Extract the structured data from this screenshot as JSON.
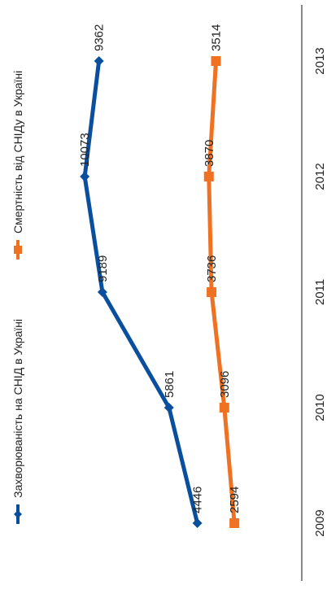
{
  "chart_data": {
    "type": "line",
    "orientation": "rotated-90-clockwise",
    "categories": [
      "2009",
      "2010",
      "2011",
      "2012",
      "2013"
    ],
    "ylim": [
      0,
      12000
    ],
    "grid": false,
    "legend_position": "left",
    "series": [
      {
        "name": "Захворюваність на СНІД в Україні",
        "marker": "diamond",
        "color": "#0a4f9e",
        "values": [
          4446,
          5861,
          9189,
          10073,
          9362
        ],
        "labels": [
          "4446",
          "5861",
          "9189",
          "10073",
          "9362"
        ]
      },
      {
        "name": "Смертність від СНІДу в Україні",
        "marker": "square",
        "color": "#f07122",
        "values": [
          2594,
          3096,
          3736,
          3870,
          3514
        ],
        "labels": [
          "2594",
          "3096",
          "3736",
          "3870",
          "3514"
        ]
      }
    ]
  },
  "colors": {
    "axis": "#888888"
  }
}
